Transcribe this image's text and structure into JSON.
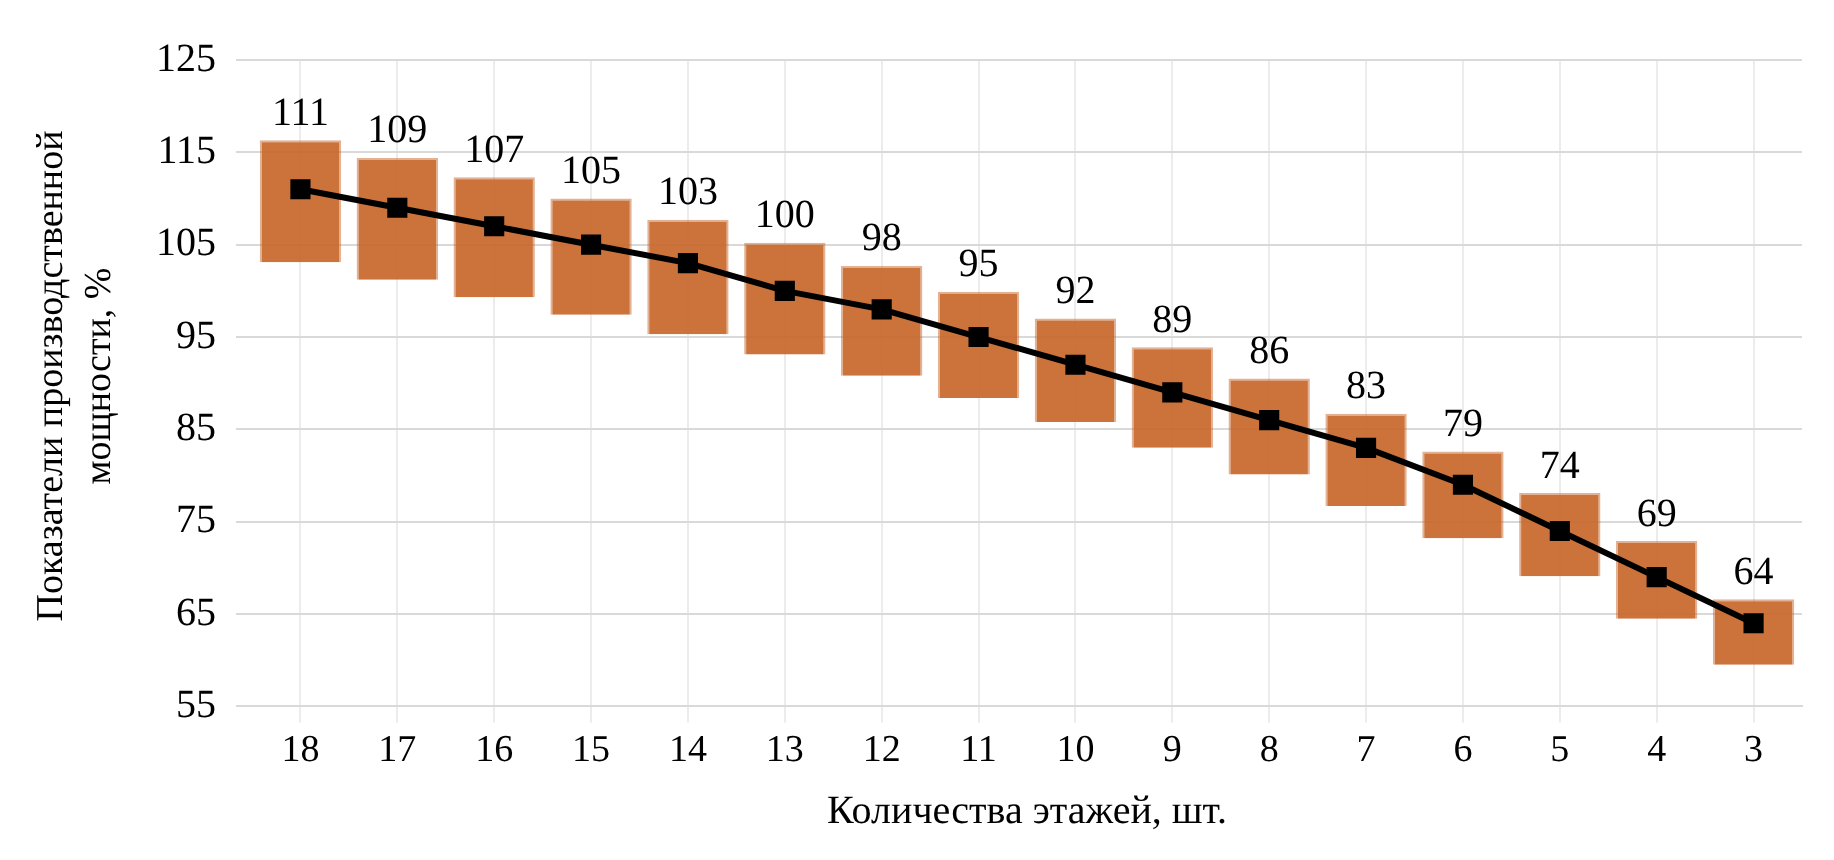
{
  "chart_data": {
    "type": "line",
    "xlabel": "Количества этажей, шт.",
    "ylabel": "Показатели производственной мощности, %",
    "categories": [
      "18",
      "17",
      "16",
      "15",
      "14",
      "13",
      "12",
      "11",
      "10",
      "9",
      "8",
      "7",
      "6",
      "5",
      "4",
      "3"
    ],
    "series": [
      {
        "type": "bar",
        "color": "#c8662a",
        "base": [
          103.1,
          101.2,
          99.3,
          97.4,
          95.3,
          93.1,
          90.8,
          88.4,
          85.8,
          83.0,
          80.1,
          76.7,
          73.2,
          69.1,
          64.5,
          59.5
        ],
        "values": [
          13.2,
          13.2,
          13.0,
          12.6,
          12.4,
          12.1,
          11.9,
          11.5,
          11.2,
          10.9,
          10.4,
          10.0,
          9.4,
          9.0,
          8.4,
          7.1
        ]
      },
      {
        "color": "#000000",
        "values": [
          111,
          109,
          107,
          105,
          103,
          100,
          98,
          95,
          92,
          89,
          86,
          83,
          79,
          74,
          69,
          64
        ],
        "value_labels": [
          "111",
          "109",
          "107",
          "105",
          "103",
          "100",
          "98",
          "95",
          "92",
          "89",
          "86",
          "83",
          "79",
          "74",
          "69",
          "64"
        ]
      }
    ],
    "ylim": [
      55,
      125
    ],
    "yticks": [
      55,
      65,
      75,
      85,
      95,
      105,
      115,
      125
    ],
    "grid": true,
    "legend": false,
    "marker": "square",
    "line_style": "solid"
  }
}
